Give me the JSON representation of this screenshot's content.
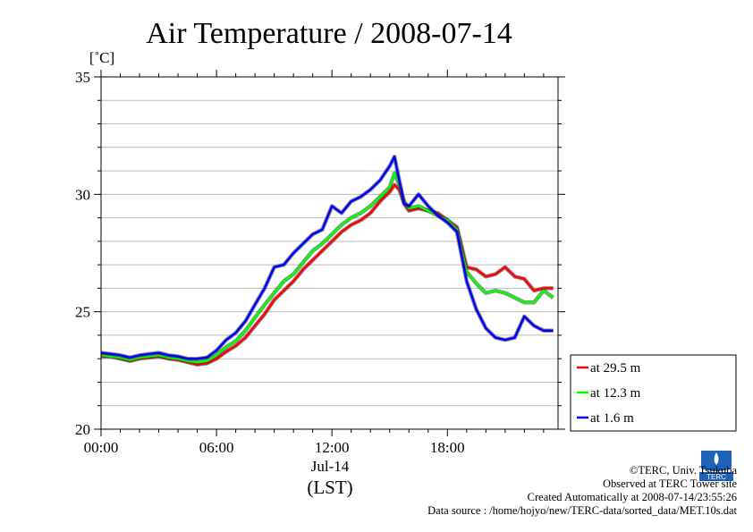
{
  "chart_data": {
    "type": "line",
    "title": "Air Temperature / 2008-07-14",
    "ylabel": "[˚C]",
    "xlabel": "(LST)",
    "date_label": "Jul-14",
    "ylim": [
      20,
      35
    ],
    "y_ticks": [
      "20",
      "25",
      "30",
      "35"
    ],
    "xlim": [
      0,
      23.75
    ],
    "x_ticks": [
      {
        "x": 0,
        "label": "00:00"
      },
      {
        "x": 6,
        "label": "06:00"
      },
      {
        "x": 12,
        "label": "12:00"
      },
      {
        "x": 18,
        "label": "18:00"
      }
    ],
    "grid": true,
    "legend_placement": "right",
    "x": [
      0,
      0.5,
      1,
      1.5,
      2,
      2.5,
      3,
      3.5,
      4,
      4.5,
      5,
      5.5,
      6,
      6.5,
      7,
      7.5,
      8,
      8.5,
      9,
      9.5,
      10,
      10.5,
      11,
      11.5,
      12,
      12.5,
      13,
      13.5,
      14,
      14.5,
      15,
      15.25,
      15.5,
      15.75,
      16,
      16.5,
      17,
      17.5,
      18,
      18.5,
      19,
      19.5,
      20,
      20.5,
      21,
      21.5,
      22,
      22.5,
      23,
      23.5
    ],
    "series": [
      {
        "name": "at 29.5 m",
        "color": "#ff0000",
        "values": [
          23.1,
          23.1,
          23.0,
          22.9,
          23.0,
          23.05,
          23.1,
          23.0,
          22.95,
          22.85,
          22.75,
          22.8,
          23.0,
          23.3,
          23.55,
          23.9,
          24.4,
          24.9,
          25.5,
          25.9,
          26.3,
          26.8,
          27.2,
          27.6,
          28.0,
          28.4,
          28.7,
          28.9,
          29.2,
          29.7,
          30.1,
          30.4,
          30.2,
          29.6,
          29.3,
          29.4,
          29.3,
          29.2,
          28.9,
          28.6,
          26.9,
          26.8,
          26.5,
          26.6,
          26.9,
          26.5,
          26.4,
          25.9,
          26.0,
          26.0
        ]
      },
      {
        "name": "at 12.3 m",
        "color": "#00ff00",
        "values": [
          23.15,
          23.1,
          23.05,
          22.95,
          23.05,
          23.1,
          23.15,
          23.05,
          23.0,
          22.9,
          22.85,
          22.9,
          23.15,
          23.5,
          23.75,
          24.2,
          24.75,
          25.3,
          25.8,
          26.3,
          26.6,
          27.1,
          27.6,
          27.9,
          28.3,
          28.7,
          29.0,
          29.2,
          29.5,
          29.9,
          30.3,
          30.9,
          30.4,
          29.7,
          29.4,
          29.5,
          29.3,
          29.1,
          28.9,
          28.5,
          26.7,
          26.2,
          25.8,
          25.9,
          25.8,
          25.6,
          25.4,
          25.4,
          25.9,
          25.6
        ]
      },
      {
        "name": "at 1.6 m",
        "color": "#0000ff",
        "values": [
          23.25,
          23.2,
          23.15,
          23.05,
          23.15,
          23.2,
          23.25,
          23.15,
          23.1,
          23.0,
          23.0,
          23.05,
          23.35,
          23.8,
          24.1,
          24.6,
          25.3,
          26.0,
          26.9,
          27.0,
          27.5,
          27.9,
          28.3,
          28.5,
          29.5,
          29.2,
          29.7,
          29.9,
          30.2,
          30.6,
          31.2,
          31.6,
          30.6,
          29.6,
          29.5,
          30.0,
          29.5,
          29.1,
          28.8,
          28.4,
          26.3,
          25.1,
          24.3,
          23.9,
          23.8,
          23.9,
          24.8,
          24.4,
          24.2,
          24.2
        ]
      }
    ]
  },
  "footer": {
    "copyright": "©TERC, Univ. Tsukuba",
    "site": "Observed at TERC Tower site",
    "created": "Created Automatically at 2008-07-14/23:55:26",
    "source": "Data source : /home/hojyo/new/TERC-data/sorted_data/MET.10s.dat",
    "logo_text": "TERC"
  }
}
